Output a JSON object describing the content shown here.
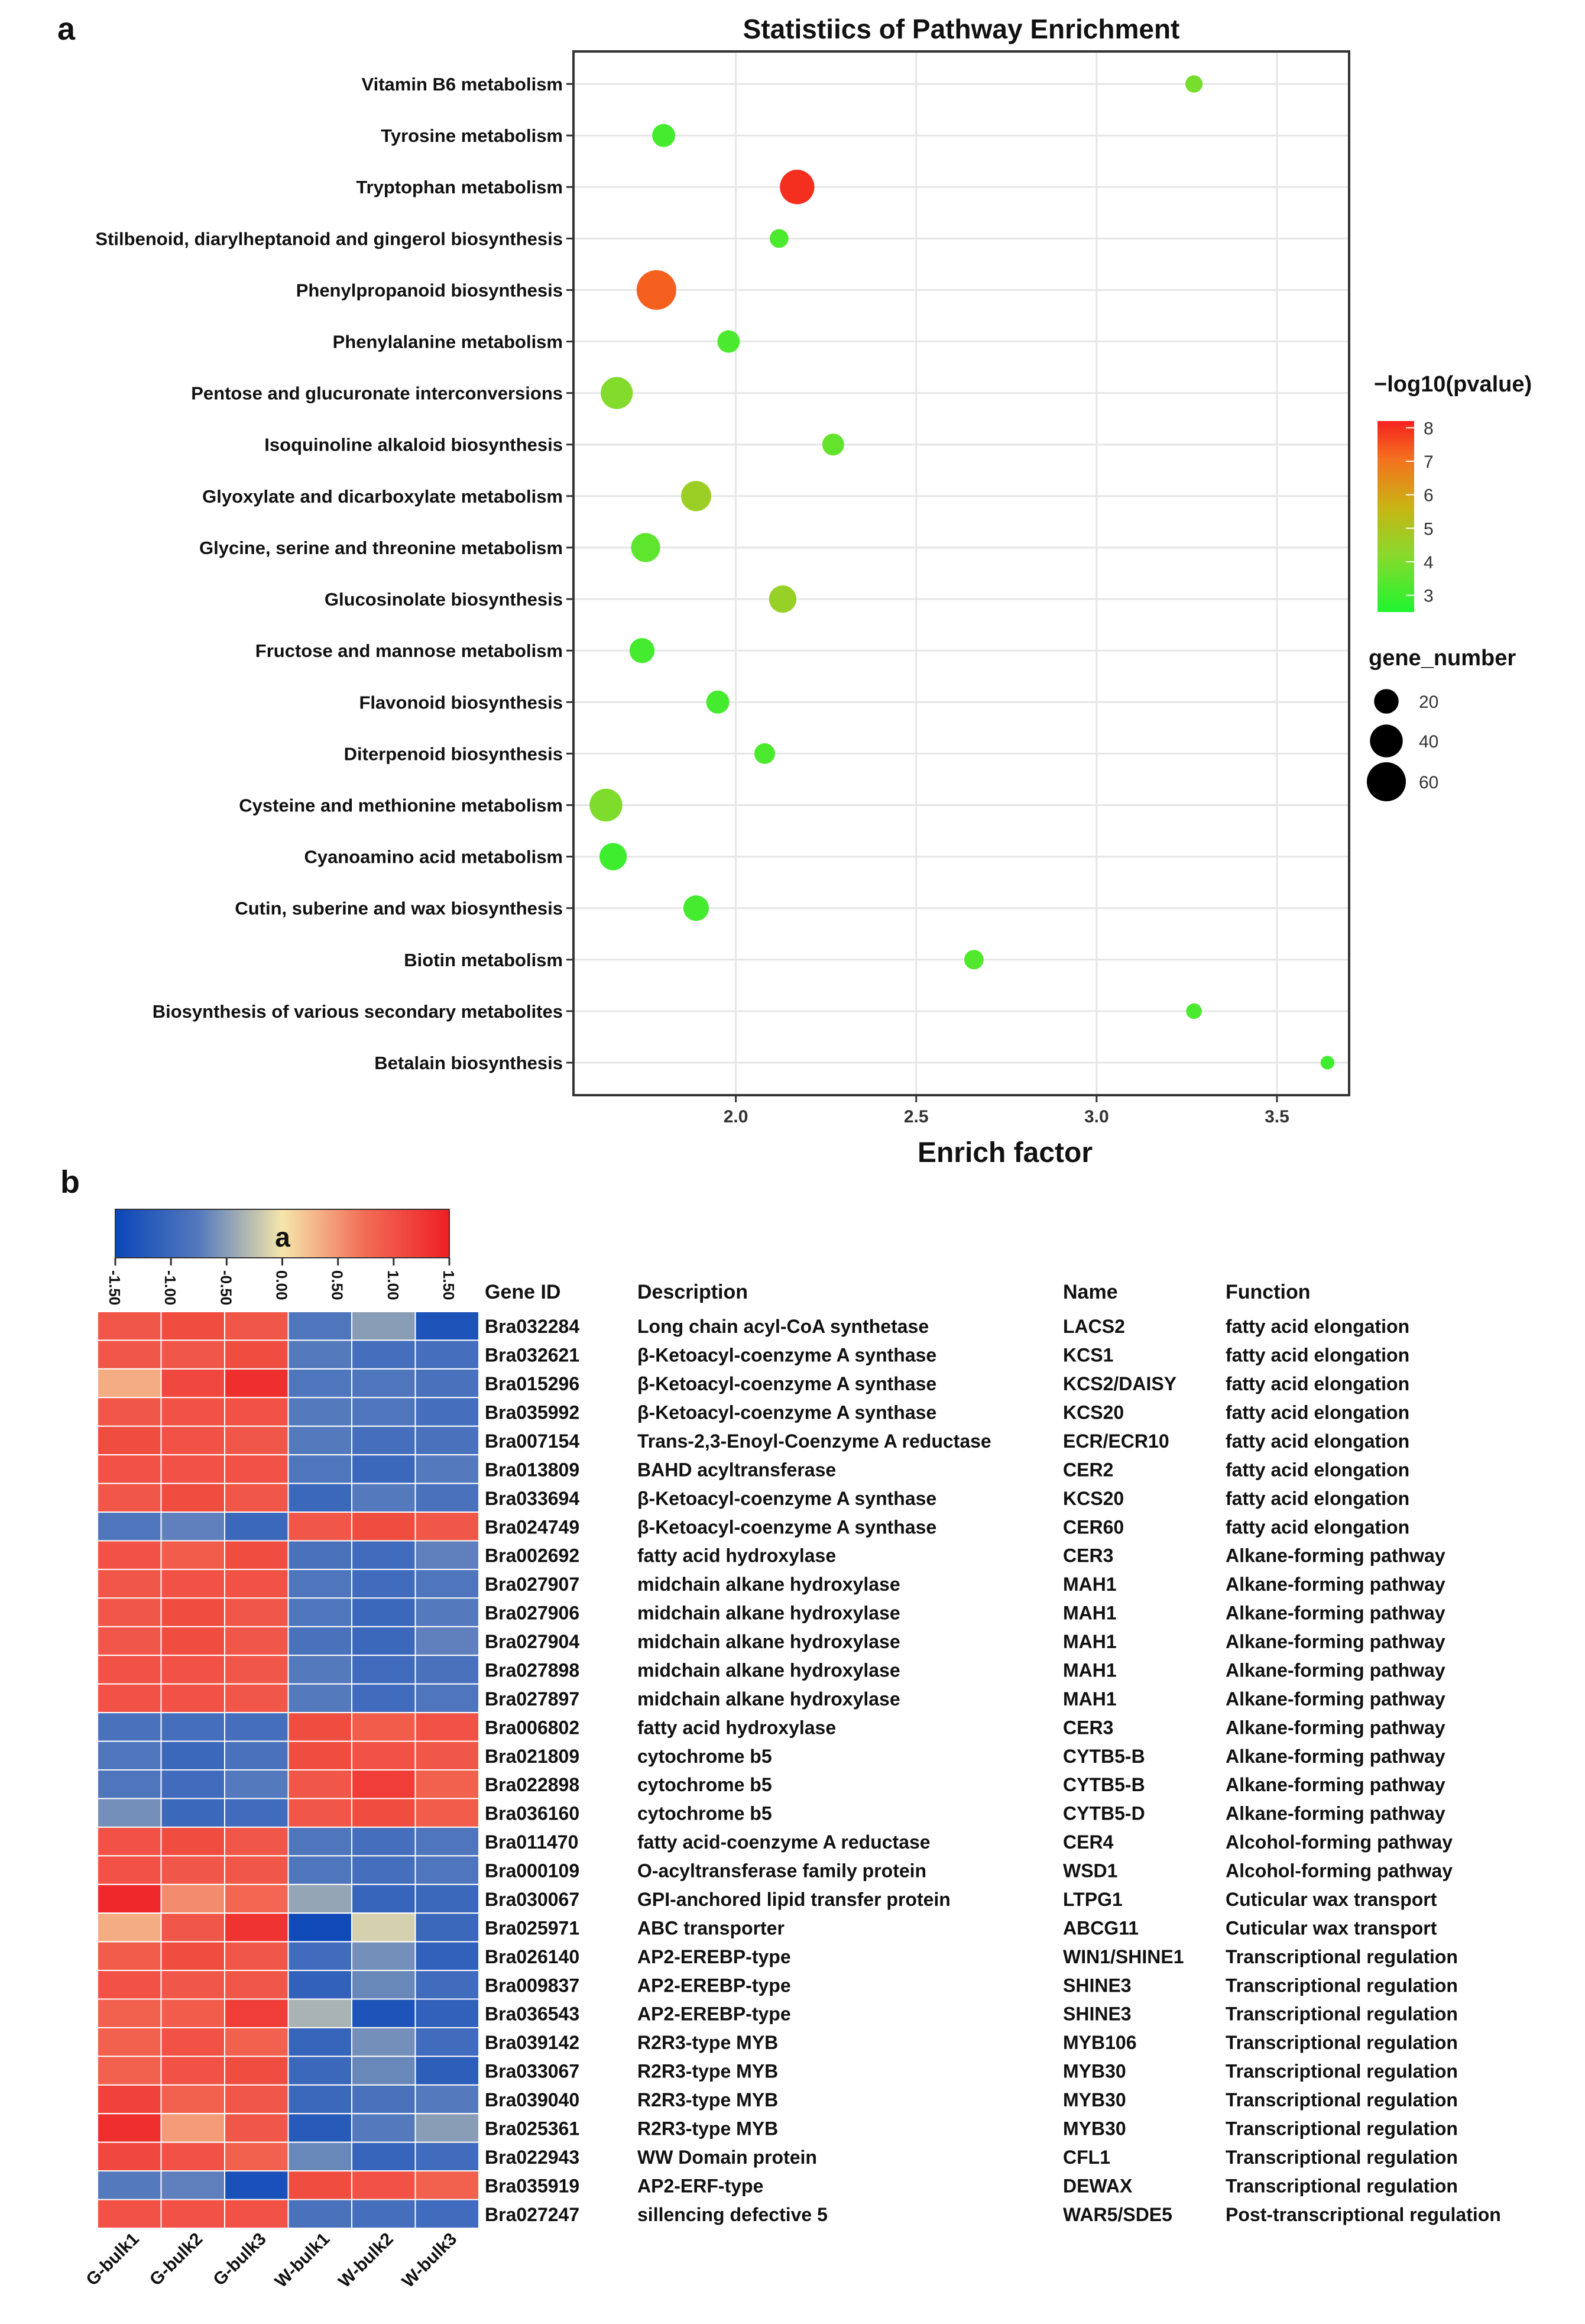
{
  "panels": {
    "a": "a",
    "b": "b"
  },
  "chart_data": [
    {
      "type": "scatter",
      "title": "Statistiics of Pathway Enrichment",
      "xlabel": "Enrich factor",
      "ylabel": "",
      "xlim": [
        1.55,
        3.7
      ],
      "xticks": [
        2.0,
        2.5,
        3.0,
        3.5
      ],
      "xtick_labels": [
        "2.0",
        "2.5",
        "3.0",
        "3.5"
      ],
      "grid": true,
      "color_legend": {
        "title": "−log10(pvalue)",
        "min": 2.5,
        "max": 8.2,
        "ticks": [
          "8",
          "7",
          "6",
          "5",
          "4",
          "3"
        ],
        "tick_values": [
          8,
          7,
          6,
          5,
          4,
          3
        ]
      },
      "size_legend": {
        "title": "gene_number",
        "labels": [
          "20",
          "40",
          "60"
        ],
        "values": [
          20,
          40,
          60
        ]
      },
      "categories": [
        "Vitamin B6 metabolism",
        "Tyrosine metabolism",
        "Tryptophan metabolism",
        "Stilbenoid, diarylheptanoid and gingerol biosynthesis",
        "Phenylpropanoid biosynthesis",
        "Phenylalanine metabolism",
        "Pentose and glucuronate interconversions",
        "Isoquinoline alkaloid biosynthesis",
        "Glyoxylate and dicarboxylate metabolism",
        "Glycine, serine and threonine metabolism",
        "Glucosinolate biosynthesis",
        "Fructose and mannose metabolism",
        "Flavonoid biosynthesis",
        "Diterpenoid biosynthesis",
        "Cysteine and methionine metabolism",
        "Cyanoamino acid metabolism",
        "Cutin, suberine and wax biosynthesis",
        "Biotin metabolism",
        "Biosynthesis of various secondary metabolites",
        "Betalain biosynthesis"
      ],
      "points": [
        {
          "pathway": "Vitamin B6 metabolism",
          "enrich_factor": 3.27,
          "neg_log10_p": 3.9,
          "gene_number": 8
        },
        {
          "pathway": "Tyrosine metabolism",
          "enrich_factor": 1.8,
          "neg_log10_p": 3.1,
          "gene_number": 17
        },
        {
          "pathway": "Tryptophan metabolism",
          "enrich_factor": 2.17,
          "neg_log10_p": 8.0,
          "gene_number": 45
        },
        {
          "pathway": "Stilbenoid, diarylheptanoid and gingerol biosynthesis",
          "enrich_factor": 2.12,
          "neg_log10_p": 3.2,
          "gene_number": 10
        },
        {
          "pathway": "Phenylpropanoid biosynthesis",
          "enrich_factor": 1.78,
          "neg_log10_p": 7.3,
          "gene_number": 62
        },
        {
          "pathway": "Phenylalanine metabolism",
          "enrich_factor": 1.98,
          "neg_log10_p": 3.2,
          "gene_number": 16
        },
        {
          "pathway": "Pentose and glucuronate interconversions",
          "enrich_factor": 1.67,
          "neg_log10_p": 4.1,
          "gene_number": 38
        },
        {
          "pathway": "Isoquinoline alkaloid biosynthesis",
          "enrich_factor": 2.27,
          "neg_log10_p": 3.6,
          "gene_number": 15
        },
        {
          "pathway": "Glyoxylate and dicarboxylate metabolism",
          "enrich_factor": 1.89,
          "neg_log10_p": 4.6,
          "gene_number": 33
        },
        {
          "pathway": "Glycine, serine and threonine metabolism",
          "enrich_factor": 1.75,
          "neg_log10_p": 3.5,
          "gene_number": 30
        },
        {
          "pathway": "Glucosinolate biosynthesis",
          "enrich_factor": 2.13,
          "neg_log10_p": 4.5,
          "gene_number": 26
        },
        {
          "pathway": "Fructose and mannose metabolism",
          "enrich_factor": 1.74,
          "neg_log10_p": 3.1,
          "gene_number": 21
        },
        {
          "pathway": "Flavonoid biosynthesis",
          "enrich_factor": 1.95,
          "neg_log10_p": 3.1,
          "gene_number": 17
        },
        {
          "pathway": "Diterpenoid biosynthesis",
          "enrich_factor": 2.08,
          "neg_log10_p": 3.2,
          "gene_number": 13
        },
        {
          "pathway": "Cysteine and methionine metabolism",
          "enrich_factor": 1.64,
          "neg_log10_p": 4.0,
          "gene_number": 40
        },
        {
          "pathway": "Cyanoamino acid metabolism",
          "enrich_factor": 1.66,
          "neg_log10_p": 3.0,
          "gene_number": 26
        },
        {
          "pathway": "Cutin, suberine and wax biosynthesis",
          "enrich_factor": 1.89,
          "neg_log10_p": 3.1,
          "gene_number": 22
        },
        {
          "pathway": "Biotin metabolism",
          "enrich_factor": 2.66,
          "neg_log10_p": 3.3,
          "gene_number": 11
        },
        {
          "pathway": "Biosynthesis of various secondary metabolites",
          "enrich_factor": 3.27,
          "neg_log10_p": 3.2,
          "gene_number": 6
        },
        {
          "pathway": "Betalain biosynthesis",
          "enrich_factor": 3.64,
          "neg_log10_p": 3.0,
          "gene_number": 4
        }
      ]
    },
    {
      "type": "heatmap",
      "title": "",
      "scale": {
        "min": -1.5,
        "max": 1.5,
        "ticks": [
          "-1.50",
          "-1.00",
          "-0.50",
          "0.00",
          "0.50",
          "1.00",
          "1.50"
        ],
        "tick_values": [
          -1.5,
          -1.0,
          -0.5,
          0.0,
          0.5,
          1.0,
          1.5
        ],
        "label": "a"
      },
      "colors": {
        "low": "#0b46b8",
        "mid": "#f5e6aa",
        "high": "#ee1f24"
      },
      "samples": [
        "G-bulk1",
        "G-bulk2",
        "G-bulk3",
        "W-bulk1",
        "W-bulk2",
        "W-bulk3"
      ],
      "table_headers": [
        "Gene ID",
        "Description",
        "Name",
        "Function"
      ],
      "rows": [
        {
          "gene_id": "Bra032284",
          "description": "Long chain acyl-CoA synthetase",
          "name": "LACS2",
          "function": "fatty acid elongation",
          "values": [
            0.95,
            1.05,
            0.95,
            -0.8,
            -0.5,
            -1.3
          ]
        },
        {
          "gene_id": "Bra032621",
          "description": "β-Ketoacyl-coenzyme A synthase",
          "name": "KCS1",
          "function": "fatty acid elongation",
          "values": [
            0.95,
            0.95,
            1.05,
            -0.75,
            -0.9,
            -0.9
          ]
        },
        {
          "gene_id": "Bra015296",
          "description": "β-Ketoacyl-coenzyme A synthase",
          "name": "KCS2/DAISY",
          "function": "fatty acid elongation",
          "values": [
            0.35,
            1.1,
            1.35,
            -0.8,
            -0.8,
            -0.85
          ]
        },
        {
          "gene_id": "Bra035992",
          "description": "β-Ketoacyl-coenzyme A synthase",
          "name": "KCS20",
          "function": "fatty acid elongation",
          "values": [
            0.95,
            1.0,
            1.0,
            -0.75,
            -0.8,
            -0.9
          ]
        },
        {
          "gene_id": "Bra007154",
          "description": "Trans-2,3-Enoyl-Coenzyme A reductase",
          "name": "ECR/ECR10",
          "function": "fatty acid elongation",
          "values": [
            1.05,
            1.0,
            0.95,
            -0.75,
            -0.9,
            -0.85
          ]
        },
        {
          "gene_id": "Bra013809",
          "description": "BAHD acyltransferase",
          "name": "CER2",
          "function": "fatty acid elongation",
          "values": [
            1.0,
            1.0,
            1.0,
            -0.8,
            -1.0,
            -0.75
          ]
        },
        {
          "gene_id": "Bra033694",
          "description": "β-Ketoacyl-coenzyme A synthase",
          "name": "KCS20",
          "function": "fatty acid elongation",
          "values": [
            0.95,
            1.05,
            0.95,
            -1.0,
            -0.75,
            -0.85
          ]
        },
        {
          "gene_id": "Bra024749",
          "description": "β-Ketoacyl-coenzyme A synthase",
          "name": "CER60",
          "function": "fatty acid elongation",
          "values": [
            -0.8,
            -0.7,
            -1.0,
            0.95,
            1.05,
            0.95
          ]
        },
        {
          "gene_id": "Bra002692",
          "description": "fatty acid hydroxylase",
          "name": "CER3",
          "function": "Alkane-forming pathway",
          "values": [
            1.0,
            0.9,
            1.05,
            -0.85,
            -0.95,
            -0.7
          ]
        },
        {
          "gene_id": "Bra027907",
          "description": "midchain alkane hydroxylase",
          "name": "MAH1",
          "function": "Alkane-forming pathway",
          "values": [
            0.95,
            1.0,
            1.0,
            -0.8,
            -0.95,
            -0.8
          ]
        },
        {
          "gene_id": "Bra027906",
          "description": "midchain alkane hydroxylase",
          "name": "MAH1",
          "function": "Alkane-forming pathway",
          "values": [
            0.95,
            1.05,
            0.95,
            -0.8,
            -1.0,
            -0.75
          ]
        },
        {
          "gene_id": "Bra027904",
          "description": "midchain alkane hydroxylase",
          "name": "MAH1",
          "function": "Alkane-forming pathway",
          "values": [
            0.95,
            1.05,
            0.95,
            -0.85,
            -1.0,
            -0.7
          ]
        },
        {
          "gene_id": "Bra027898",
          "description": "midchain alkane hydroxylase",
          "name": "MAH1",
          "function": "Alkane-forming pathway",
          "values": [
            1.0,
            1.0,
            0.95,
            -0.75,
            -0.95,
            -0.85
          ]
        },
        {
          "gene_id": "Bra027897",
          "description": "midchain alkane hydroxylase",
          "name": "MAH1",
          "function": "Alkane-forming pathway",
          "values": [
            1.0,
            1.0,
            0.95,
            -0.75,
            -0.95,
            -0.8
          ]
        },
        {
          "gene_id": "Bra006802",
          "description": "fatty acid hydroxylase",
          "name": "CER3",
          "function": "Alkane-forming pathway",
          "values": [
            -0.85,
            -0.9,
            -0.9,
            1.05,
            0.9,
            1.0
          ]
        },
        {
          "gene_id": "Bra021809",
          "description": "cytochrome b5",
          "name": "CYTB5-B",
          "function": "Alkane-forming pathway",
          "values": [
            -0.8,
            -1.0,
            -0.85,
            1.05,
            1.0,
            0.95
          ]
        },
        {
          "gene_id": "Bra022898",
          "description": "cytochrome b5",
          "name": "CYTB5-B",
          "function": "Alkane-forming pathway",
          "values": [
            -0.8,
            -0.95,
            -0.75,
            0.95,
            1.2,
            0.85
          ]
        },
        {
          "gene_id": "Bra036160",
          "description": "cytochrome b5",
          "name": "CYTB5-D",
          "function": "Alkane-forming pathway",
          "values": [
            -0.6,
            -1.0,
            -0.95,
            0.95,
            1.05,
            0.9
          ]
        },
        {
          "gene_id": "Bra011470",
          "description": "fatty acid-coenzyme A reductase",
          "name": "CER4",
          "function": "Alcohol-forming pathway",
          "values": [
            1.0,
            1.05,
            0.95,
            -0.8,
            -0.9,
            -0.8
          ]
        },
        {
          "gene_id": "Bra000109",
          "description": "O-acyltransferase family protein",
          "name": "WSD1",
          "function": "Alcohol-forming pathway",
          "values": [
            1.0,
            0.95,
            0.95,
            -0.8,
            -0.9,
            -0.8
          ]
        },
        {
          "gene_id": "Bra030067",
          "description": "GPI-anchored lipid transfer protein",
          "name": "LTPG1",
          "function": "Cuticular wax transport",
          "values": [
            1.4,
            0.55,
            0.8,
            -0.45,
            -1.05,
            -1.0
          ]
        },
        {
          "gene_id": "Bra025971",
          "description": "ABC transporter",
          "name": "ABCG11",
          "function": "Cuticular wax transport",
          "values": [
            0.35,
            0.95,
            1.3,
            -1.45,
            -0.15,
            -1.0
          ]
        },
        {
          "gene_id": "Bra026140",
          "description": "AP2-EREBP-type",
          "name": "WIN1/SHINE1",
          "function": "Transcriptional regulation",
          "values": [
            0.9,
            1.05,
            0.95,
            -0.95,
            -0.6,
            -1.1
          ]
        },
        {
          "gene_id": "Bra009837",
          "description": "AP2-EREBP-type",
          "name": "SHINE3",
          "function": "Transcriptional regulation",
          "values": [
            1.0,
            0.95,
            0.95,
            -1.1,
            -0.65,
            -0.95
          ]
        },
        {
          "gene_id": "Bra036543",
          "description": "AP2-EREBP-type",
          "name": "SHINE3",
          "function": "Transcriptional regulation",
          "values": [
            0.85,
            0.9,
            1.2,
            -0.35,
            -1.3,
            -1.1
          ]
        },
        {
          "gene_id": "Bra039142",
          "description": "R2R3-type MYB",
          "name": "MYB106",
          "function": "Transcriptional regulation",
          "values": [
            0.85,
            1.0,
            0.85,
            -1.05,
            -0.6,
            -0.95
          ]
        },
        {
          "gene_id": "Bra033067",
          "description": "R2R3-type MYB",
          "name": "MYB30",
          "function": "Transcriptional regulation",
          "values": [
            0.85,
            1.0,
            1.05,
            -1.0,
            -0.65,
            -1.15
          ]
        },
        {
          "gene_id": "Bra039040",
          "description": "R2R3-type MYB",
          "name": "MYB30",
          "function": "Transcriptional regulation",
          "values": [
            1.15,
            0.85,
            0.95,
            -1.0,
            -0.85,
            -0.75
          ]
        },
        {
          "gene_id": "Bra025361",
          "description": "R2R3-type MYB",
          "name": "MYB30",
          "function": "Transcriptional regulation",
          "values": [
            1.35,
            0.45,
            0.95,
            -1.2,
            -0.75,
            -0.5
          ]
        },
        {
          "gene_id": "Bra022943",
          "description": "WW Domain protein",
          "name": "CFL1",
          "function": "Transcriptional regulation",
          "values": [
            1.1,
            1.0,
            0.85,
            -0.65,
            -1.05,
            -0.95
          ]
        },
        {
          "gene_id": "Bra035919",
          "description": "AP2-ERF-type",
          "name": "DEWAX",
          "function": "Transcriptional regulation",
          "values": [
            -0.75,
            -0.7,
            -1.35,
            1.05,
            1.0,
            0.85
          ]
        },
        {
          "gene_id": "Bra027247",
          "description": "sillencing defective 5",
          "name": "WAR5/SDE5",
          "function": "Post-transcriptional regulation",
          "values": [
            1.0,
            1.0,
            1.0,
            -0.85,
            -0.9,
            -0.95
          ]
        }
      ]
    }
  ]
}
